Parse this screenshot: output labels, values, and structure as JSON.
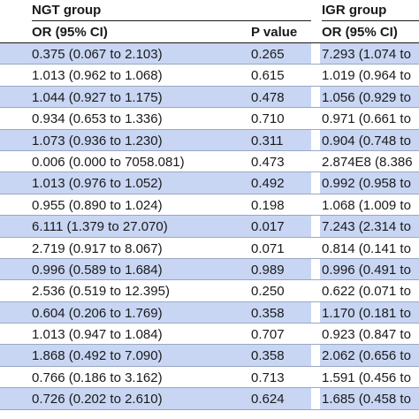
{
  "table": {
    "groups": [
      "NGT group",
      "IGR group"
    ],
    "columns": [
      "OR (95% CI)",
      "P value",
      "OR (95% CI)"
    ],
    "rows": [
      [
        "0.375 (0.067 to 2.103)",
        "0.265",
        "7.293 (1.074 to"
      ],
      [
        "1.013 (0.962 to 1.068)",
        "0.615",
        "1.019 (0.964 to"
      ],
      [
        "1.044 (0.927 to 1.175)",
        "0.478",
        "1.056 (0.929 to"
      ],
      [
        "0.934 (0.653 to 1.336)",
        "0.710",
        "0.971 (0.661 to"
      ],
      [
        "1.073 (0.936 to 1.230)",
        "0.311",
        "0.904 (0.748 to"
      ],
      [
        "0.006 (0.000 to 7058.081)",
        "0.473",
        "2.874E8 (8.386"
      ],
      [
        "1.013 (0.976 to 1.052)",
        "0.492",
        "0.992 (0.958 to"
      ],
      [
        "0.955 (0.890 to 1.024)",
        "0.198",
        "1.068 (1.009 to"
      ],
      [
        "6.111 (1.379 to 27.070)",
        "0.017",
        "7.243 (2.314 to"
      ],
      [
        "2.719 (0.917 to 8.067)",
        "0.071",
        "0.814 (0.141 to"
      ],
      [
        "0.996 (0.589 to 1.684)",
        "0.989",
        "0.996 (0.491 to"
      ],
      [
        "2.536 (0.519 to 12.395)",
        "0.250",
        "0.622 (0.071 to"
      ],
      [
        "0.604 (0.206 to 1.769)",
        "0.358",
        "1.170 (0.181 to"
      ],
      [
        "1.013 (0.947 to 1.084)",
        "0.707",
        "0.923 (0.847 to"
      ],
      [
        "1.868 (0.492 to 7.090)",
        "0.358",
        "2.062 (0.656 to"
      ],
      [
        "0.766 (0.186 to 3.162)",
        "0.713",
        "1.591 (0.456 to"
      ],
      [
        "0.726 (0.202 to 2.610)",
        "0.624",
        "1.685 (0.458 to"
      ]
    ]
  },
  "colors": {
    "shaded_row": "#c8d6f3",
    "text": "#1a1a1a"
  }
}
